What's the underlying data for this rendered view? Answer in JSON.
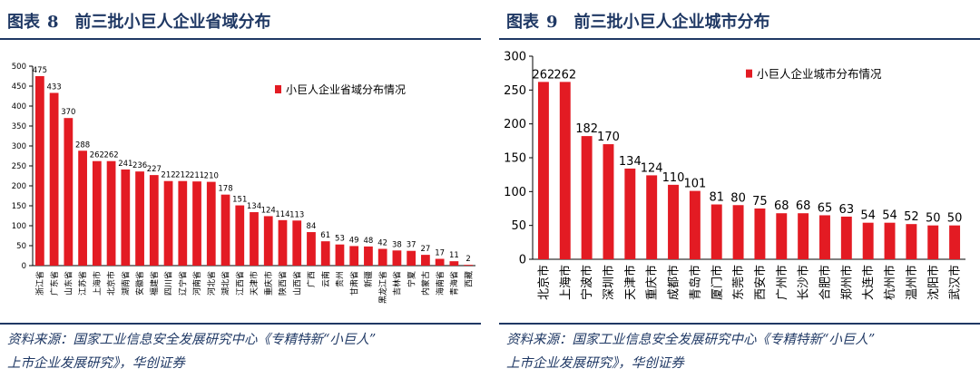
{
  "left": {
    "fig_label": "图表",
    "fig_number": "8",
    "fig_title": "前三批小巨人企业省域分布",
    "source_line1": "资料来源：国家工业信息安全发展研究中心《专精特新“小巨人”",
    "source_line2": "上市企业发展研究》，华创证券"
  },
  "right": {
    "fig_label": "图表",
    "fig_number": "9",
    "fig_title": "前三批小巨人企业城市分布",
    "source_line1": "资料来源：国家工业信息安全发展研究中心《专精特新“小巨人”",
    "source_line2": "上市企业发展研究》，华创证券"
  },
  "chart_data": [
    {
      "type": "bar",
      "title": "前三批小巨人企业省域分布",
      "legend": "小巨人企业省域分布情况",
      "legend_position": "top-right",
      "bar_color": "#E31B23",
      "ylim": [
        0,
        500
      ],
      "yticks": [
        0,
        50,
        100,
        150,
        200,
        250,
        300,
        350,
        400,
        450,
        500
      ],
      "categories": [
        "浙江省",
        "广东省",
        "山东省",
        "江苏省",
        "上海市",
        "北京市",
        "湖南省",
        "安徽省",
        "福建省",
        "四川省",
        "辽宁省",
        "河南省",
        "河北省",
        "湖北省",
        "江西省",
        "天津市",
        "重庆市",
        "陕西省",
        "山西省",
        "广西",
        "云南",
        "贵州",
        "甘肃省",
        "新疆",
        "黑龙江省",
        "吉林省",
        "宁夏",
        "内蒙古",
        "海南省",
        "青海省",
        "西藏"
      ],
      "values": [
        475,
        433,
        370,
        288,
        262,
        262,
        241,
        236,
        227,
        212,
        212,
        211,
        210,
        178,
        151,
        134,
        124,
        114,
        113,
        84,
        61,
        53,
        49,
        48,
        42,
        38,
        37,
        27,
        17,
        11,
        2
      ]
    },
    {
      "type": "bar",
      "title": "前三批小巨人企业城市分布",
      "legend": "小巨人企业城市分布情况",
      "legend_position": "top-right",
      "bar_color": "#E31B23",
      "ylim": [
        0,
        300
      ],
      "yticks": [
        0,
        50,
        100,
        150,
        200,
        250,
        300
      ],
      "categories": [
        "北京市",
        "上海市",
        "宁波市",
        "深圳市",
        "天津市",
        "重庆市",
        "成都市",
        "青岛市",
        "厦门市",
        "东莞市",
        "西安市",
        "广州市",
        "长沙市",
        "合肥市",
        "郑州市",
        "大连市",
        "杭州市",
        "温州市",
        "沈阳市",
        "武汉市"
      ],
      "values": [
        262,
        262,
        182,
        170,
        134,
        124,
        110,
        101,
        81,
        80,
        75,
        68,
        68,
        65,
        63,
        54,
        54,
        52,
        50,
        50
      ]
    }
  ]
}
